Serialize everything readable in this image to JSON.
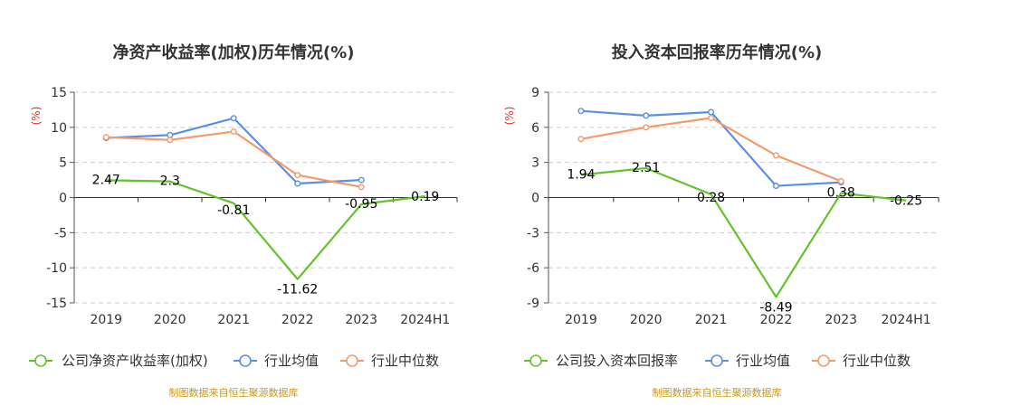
{
  "chart_data": [
    {
      "type": "line",
      "title": "净资产收益率(加权)历年情况(%)",
      "ylabel": "(%)",
      "categories": [
        "2019",
        "2020",
        "2021",
        "2022",
        "2023",
        "2024H1"
      ],
      "ylim": [
        -15,
        15
      ],
      "yticks": [
        15,
        10,
        5,
        0,
        -5,
        -10,
        -15
      ],
      "grid": true,
      "legend_position": "bottom",
      "series": [
        {
          "name": "公司净资产收益率(加权)",
          "color": "#62c42a",
          "show_labels": true,
          "values": [
            2.47,
            2.3,
            -0.81,
            -11.62,
            -0.95,
            0.19
          ],
          "labels": [
            "2.47",
            "2.3",
            "-0.81",
            "-11.62",
            "-0.95",
            "0.19"
          ]
        },
        {
          "name": "行业均值",
          "color": "#5b8ee6",
          "show_labels": false,
          "values": [
            8.5,
            8.9,
            11.3,
            2.0,
            2.5,
            null
          ]
        },
        {
          "name": "行业中位数",
          "color": "#f5996a",
          "show_labels": false,
          "values": [
            8.6,
            8.2,
            9.4,
            3.2,
            1.5,
            null
          ]
        }
      ],
      "source": "制图数据来自恒生聚源数据库"
    },
    {
      "type": "line",
      "title": "投入资本回报率历年情况(%)",
      "ylabel": "(%)",
      "categories": [
        "2019",
        "2020",
        "2021",
        "2022",
        "2023",
        "2024H1"
      ],
      "ylim": [
        -9,
        9
      ],
      "yticks": [
        9,
        6,
        3,
        0,
        -3,
        -6,
        -9
      ],
      "grid": true,
      "legend_position": "bottom",
      "series": [
        {
          "name": "公司投入资本回报率",
          "color": "#62c42a",
          "show_labels": true,
          "values": [
            1.94,
            2.51,
            0.28,
            -8.49,
            0.38,
            -0.25
          ],
          "labels": [
            "1.94",
            "2.51",
            "0.28",
            "-8.49",
            "0.38",
            "-0.25"
          ]
        },
        {
          "name": "行业均值",
          "color": "#5b8ee6",
          "show_labels": false,
          "values": [
            7.4,
            7.0,
            7.3,
            1.0,
            1.3,
            null
          ]
        },
        {
          "name": "行业中位数",
          "color": "#f5996a",
          "show_labels": false,
          "values": [
            5.0,
            6.0,
            6.8,
            3.6,
            1.4,
            null
          ]
        }
      ],
      "source": "制图数据来自恒生聚源数据库"
    }
  ]
}
